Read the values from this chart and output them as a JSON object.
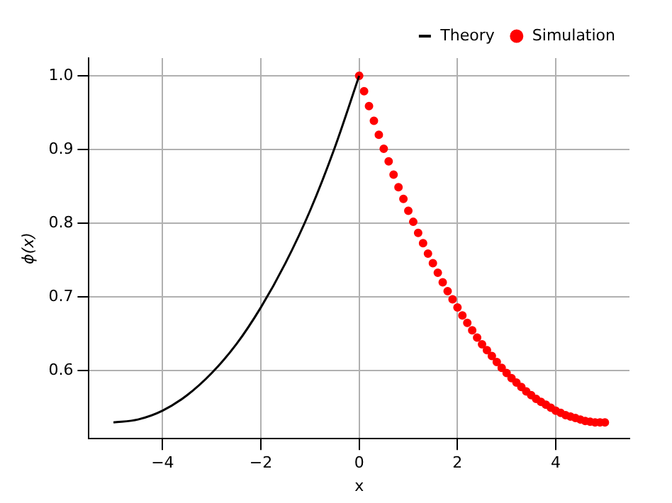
{
  "chart_data": {
    "type": "line",
    "xlabel": "x",
    "ylabel": "ϕ(x)",
    "xlim": [
      -5.5,
      5.5
    ],
    "ylim": [
      0.508,
      1.024
    ],
    "xticks": [
      {
        "value": -4,
        "label": "−4"
      },
      {
        "value": -2,
        "label": "−2"
      },
      0,
      2,
      4
    ],
    "yticks": [
      {
        "value": 0.6,
        "label": "0.6"
      },
      {
        "value": 0.7,
        "label": "0.7"
      },
      {
        "value": 0.8,
        "label": "0.8"
      },
      {
        "value": 0.9,
        "label": "0.9"
      },
      {
        "value": 1.0,
        "label": "1.0"
      }
    ],
    "grid": true,
    "legend": "top right",
    "series": [
      {
        "name": "Theory",
        "type": "line",
        "marker": "none",
        "color": "#000000",
        "x": [
          -5,
          -4.5,
          -4,
          -3.5,
          -3,
          -2.5,
          -2,
          -1.5,
          -1,
          -0.5,
          0
        ],
        "values": [
          0.53,
          0.534,
          0.546,
          0.567,
          0.597,
          0.636,
          0.686,
          0.746,
          0.817,
          0.902,
          1.0
        ]
      },
      {
        "name": "Simulation",
        "type": "scatter",
        "marker": "circle",
        "color": "#ff0000",
        "x": [
          0,
          0.1,
          0.2,
          0.3,
          0.4,
          0.5,
          0.6,
          0.7,
          0.8,
          0.9,
          1,
          1.1,
          1.2,
          1.3,
          1.4,
          1.5,
          1.6,
          1.7,
          1.8,
          1.9,
          2,
          2.1,
          2.2,
          2.3,
          2.4,
          2.5,
          2.6,
          2.7,
          2.8,
          2.9,
          3,
          3.1,
          3.2,
          3.3,
          3.4,
          3.5,
          3.6,
          3.7,
          3.8,
          3.9,
          4,
          4.1,
          4.2,
          4.3,
          4.4,
          4.5,
          4.6,
          4.7,
          4.8,
          4.9,
          5
        ],
        "values": [
          1.0,
          0.979,
          0.959,
          0.939,
          0.92,
          0.901,
          0.884,
          0.866,
          0.849,
          0.833,
          0.817,
          0.802,
          0.787,
          0.773,
          0.759,
          0.746,
          0.733,
          0.72,
          0.708,
          0.697,
          0.686,
          0.675,
          0.665,
          0.655,
          0.645,
          0.636,
          0.628,
          0.62,
          0.612,
          0.604,
          0.597,
          0.59,
          0.584,
          0.578,
          0.572,
          0.567,
          0.562,
          0.558,
          0.554,
          0.55,
          0.546,
          0.543,
          0.54,
          0.538,
          0.536,
          0.534,
          0.532,
          0.531,
          0.53,
          0.53,
          0.53
        ]
      }
    ]
  }
}
